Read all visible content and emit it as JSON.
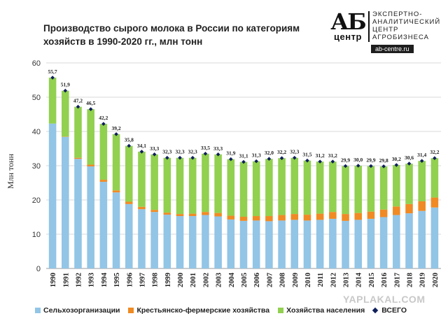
{
  "title_line1": "Производство  сырого молока в России по категориям",
  "title_line2": "хозяйств в 1990-2020 гг., млн тонн",
  "logo": {
    "mark": "АБ",
    "sub": "центр",
    "line1": "ЭКСПЕРТНО-",
    "line2": "АНАЛИТИЧЕСКИЙ",
    "line3": "ЦЕНТР",
    "line4": "АГРОБИЗНЕСА",
    "url": "ab-centre.ru"
  },
  "watermark": "YAPLAKAL.COM",
  "colors": {
    "agri_orgs": "#92c5e6",
    "farms": "#f08a24",
    "households": "#92d050",
    "total": "#0f1f5c",
    "grid": "#d9d9d9"
  },
  "chart_data": {
    "type": "bar",
    "stacked": true,
    "categories": [
      "1990",
      "1991",
      "1992",
      "1993",
      "1994",
      "1995",
      "1996",
      "1997",
      "1998",
      "1999",
      "2000",
      "2001",
      "2002",
      "2003",
      "2004",
      "2005",
      "2006",
      "2007",
      "2008",
      "2009",
      "2010",
      "2011",
      "2012",
      "2013",
      "2014",
      "2015",
      "2016",
      "2017",
      "2018",
      "2019",
      "2020"
    ],
    "series": [
      {
        "name": "Сельхозорганизации",
        "values": [
          42.3,
          38.4,
          32.0,
          29.8,
          25.3,
          22.2,
          18.8,
          17.3,
          16.5,
          15.7,
          15.3,
          15.3,
          15.6,
          15.2,
          14.3,
          13.9,
          14.0,
          13.8,
          14.0,
          14.2,
          14.0,
          14.2,
          14.5,
          13.9,
          14.2,
          14.5,
          15.0,
          15.6,
          16.1,
          16.8,
          17.8
        ]
      },
      {
        "name": "Крестьянско-фермерские хозяйства",
        "values": [
          0.0,
          0.1,
          0.3,
          0.5,
          0.6,
          0.6,
          0.7,
          0.7,
          0.6,
          0.6,
          0.6,
          0.7,
          0.9,
          1.0,
          1.1,
          1.2,
          1.3,
          1.5,
          1.6,
          1.7,
          1.7,
          1.8,
          2.0,
          2.0,
          2.0,
          2.1,
          2.2,
          2.5,
          2.7,
          2.8,
          2.9
        ]
      },
      {
        "name": "Хозяйства населения",
        "values": [
          13.4,
          13.4,
          14.9,
          16.2,
          16.3,
          16.4,
          16.3,
          16.1,
          16.2,
          16.0,
          16.4,
          16.3,
          17.0,
          17.1,
          16.5,
          16.0,
          16.0,
          16.7,
          16.6,
          16.4,
          15.8,
          15.2,
          14.7,
          14.0,
          13.8,
          13.3,
          12.6,
          12.1,
          11.8,
          11.8,
          11.5
        ]
      }
    ],
    "totals_name": "ВСЕГО",
    "totals": [
      55.7,
      51.9,
      47.2,
      46.5,
      42.2,
      39.2,
      35.8,
      34.1,
      33.3,
      32.3,
      32.3,
      32.3,
      33.5,
      33.3,
      31.9,
      31.1,
      31.3,
      32.0,
      32.2,
      32.3,
      31.5,
      31.2,
      31.2,
      29.9,
      30.0,
      29.9,
      29.8,
      30.2,
      30.6,
      31.4,
      32.2
    ],
    "total_labels": [
      "55,7",
      "51,9",
      "47,2",
      "46,5",
      "42,2",
      "39,2",
      "35,8",
      "34,1",
      "33,3",
      "32,3",
      "32,3",
      "32,3",
      "33,5",
      "33,3",
      "31,9",
      "31,1",
      "31,3",
      "32,0",
      "32,2",
      "32,3",
      "31,5",
      "31,2",
      "31,2",
      "29,9",
      "30,0",
      "29,9",
      "29,8",
      "30,2",
      "30,6",
      "31,4",
      "32,2"
    ],
    "ylabel": "Млн тонн",
    "xlabel": "",
    "ylim": [
      0,
      60
    ],
    "yticks": [
      0,
      10,
      20,
      30,
      40,
      50,
      60
    ],
    "grid": true,
    "legend": "bottom"
  }
}
